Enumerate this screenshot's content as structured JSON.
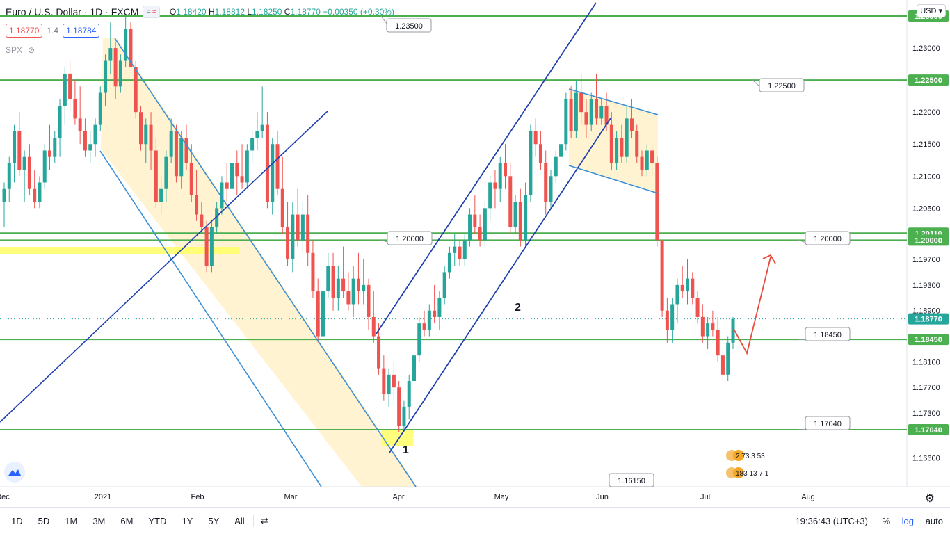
{
  "header": {
    "symbol_title": "Euro / U.S. Dollar · 1D · FXCM",
    "ohlc": {
      "o_label": "O",
      "o": "1.18420",
      "h_label": "H",
      "h": "1.18812",
      "l_label": "L",
      "l": "1.18250",
      "c_label": "C",
      "c": "1.18770",
      "change": "+0.00350 (+0.30%)"
    },
    "sell_price": "1.18770",
    "spread": "1.4",
    "buy_price": "1.18784",
    "indicator": "SPX",
    "currency": "USD",
    "toggle_icon": "chart-style-toggle-icon"
  },
  "colors": {
    "up": "#26a69a",
    "down": "#ef5350",
    "level": "#4caf50",
    "channel": "#1e40af",
    "trend": "#3a8fd6",
    "band": "#fff2cc",
    "highlight": "#ffff66",
    "arrow": "#e74c3c",
    "sr_label_bg": "#4caf50"
  },
  "chart_data": {
    "type": "candlestick",
    "title": "Euro / U.S. Dollar · 1D · FXCM",
    "y_axis": {
      "min": 1.1615,
      "max": 1.2375,
      "ticks": [
        "1.23000",
        "1.22000",
        "1.21500",
        "1.21000",
        "1.20500",
        "1.19700",
        "1.19300",
        "1.18900",
        "1.18100",
        "1.17700",
        "1.17300",
        "1.16600"
      ]
    },
    "x_axis": {
      "ticks": [
        "Dec",
        "2021",
        "Feb",
        "Mar",
        "Apr",
        "May",
        "Jun",
        "Jul",
        "Aug"
      ]
    },
    "support_resistance": [
      {
        "value": 1.235,
        "label": "1.23500"
      },
      {
        "value": 1.225,
        "label": "1.22500"
      },
      {
        "value": 1.2011,
        "label": "1.20110"
      },
      {
        "value": 1.2,
        "label": "1.20000"
      },
      {
        "value": 1.1845,
        "label": "1.18450"
      },
      {
        "value": 1.1704,
        "label": "1.17040"
      }
    ],
    "level_callouts": [
      "1.23500",
      "1.22500",
      "1.20000",
      "1.20000",
      "1.18450",
      "1.17040",
      "1.16150"
    ],
    "current_price": "1.18770",
    "annotations": [
      "1",
      "2"
    ],
    "candles": [
      [
        1.206,
        1.209,
        1.202,
        1.208
      ],
      [
        1.208,
        1.213,
        1.206,
        1.212
      ],
      [
        1.212,
        1.218,
        1.209,
        1.217
      ],
      [
        1.217,
        1.22,
        1.21,
        1.211
      ],
      [
        1.211,
        1.214,
        1.206,
        1.213
      ],
      [
        1.213,
        1.215,
        1.207,
        1.208
      ],
      [
        1.208,
        1.211,
        1.205,
        1.206
      ],
      [
        1.206,
        1.21,
        1.205,
        1.209
      ],
      [
        1.209,
        1.215,
        1.208,
        1.214
      ],
      [
        1.214,
        1.218,
        1.211,
        1.213
      ],
      [
        1.213,
        1.217,
        1.212,
        1.216
      ],
      [
        1.216,
        1.222,
        1.213,
        1.221
      ],
      [
        1.221,
        1.227,
        1.218,
        1.226
      ],
      [
        1.226,
        1.228,
        1.22,
        1.222
      ],
      [
        1.222,
        1.225,
        1.218,
        1.219
      ],
      [
        1.219,
        1.224,
        1.215,
        1.217
      ],
      [
        1.217,
        1.219,
        1.213,
        1.214
      ],
      [
        1.214,
        1.217,
        1.212,
        1.215
      ],
      [
        1.215,
        1.219,
        1.213,
        1.218
      ],
      [
        1.218,
        1.224,
        1.217,
        1.223
      ],
      [
        1.223,
        1.229,
        1.221,
        1.228
      ],
      [
        1.228,
        1.234,
        1.226,
        1.23
      ],
      [
        1.23,
        1.231,
        1.222,
        1.224
      ],
      [
        1.224,
        1.229,
        1.223,
        1.228
      ],
      [
        1.228,
        1.235,
        1.227,
        1.233
      ],
      [
        1.233,
        1.234,
        1.227,
        1.227
      ],
      [
        1.227,
        1.228,
        1.219,
        1.22
      ],
      [
        1.22,
        1.221,
        1.214,
        1.215
      ],
      [
        1.215,
        1.219,
        1.212,
        1.218
      ],
      [
        1.218,
        1.22,
        1.211,
        1.214
      ],
      [
        1.214,
        1.216,
        1.205,
        1.206
      ],
      [
        1.206,
        1.21,
        1.204,
        1.208
      ],
      [
        1.208,
        1.214,
        1.206,
        1.213
      ],
      [
        1.213,
        1.219,
        1.212,
        1.217
      ],
      [
        1.217,
        1.218,
        1.209,
        1.21
      ],
      [
        1.21,
        1.217,
        1.208,
        1.216
      ],
      [
        1.216,
        1.218,
        1.211,
        1.212
      ],
      [
        1.212,
        1.215,
        1.206,
        1.207
      ],
      [
        1.207,
        1.211,
        1.203,
        1.204
      ],
      [
        1.204,
        1.206,
        1.201,
        1.202
      ],
      [
        1.202,
        1.203,
        1.195,
        1.196
      ],
      [
        1.196,
        1.203,
        1.195,
        1.202
      ],
      [
        1.202,
        1.206,
        1.201,
        1.205
      ],
      [
        1.205,
        1.21,
        1.204,
        1.209
      ],
      [
        1.209,
        1.212,
        1.206,
        1.208
      ],
      [
        1.208,
        1.214,
        1.207,
        1.212
      ],
      [
        1.212,
        1.214,
        1.207,
        1.21
      ],
      [
        1.21,
        1.215,
        1.208,
        1.209
      ],
      [
        1.209,
        1.215,
        1.208,
        1.214
      ],
      [
        1.214,
        1.217,
        1.212,
        1.216
      ],
      [
        1.216,
        1.22,
        1.214,
        1.217
      ],
      [
        1.217,
        1.224,
        1.216,
        1.218
      ],
      [
        1.218,
        1.22,
        1.205,
        1.206
      ],
      [
        1.206,
        1.216,
        1.204,
        1.215
      ],
      [
        1.215,
        1.217,
        1.207,
        1.208
      ],
      [
        1.208,
        1.213,
        1.201,
        1.202
      ],
      [
        1.202,
        1.206,
        1.196,
        1.197
      ],
      [
        1.197,
        1.206,
        1.195,
        1.204
      ],
      [
        1.204,
        1.208,
        1.199,
        1.2
      ],
      [
        1.2,
        1.206,
        1.198,
        1.204
      ],
      [
        1.204,
        1.207,
        1.196,
        1.198
      ],
      [
        1.198,
        1.2,
        1.191,
        1.192
      ],
      [
        1.192,
        1.194,
        1.184,
        1.185
      ],
      [
        1.185,
        1.194,
        1.184,
        1.192
      ],
      [
        1.192,
        1.198,
        1.191,
        1.196
      ],
      [
        1.196,
        1.198,
        1.189,
        1.191
      ],
      [
        1.191,
        1.196,
        1.189,
        1.194
      ],
      [
        1.194,
        1.199,
        1.191,
        1.192
      ],
      [
        1.192,
        1.195,
        1.189,
        1.19
      ],
      [
        1.19,
        1.196,
        1.188,
        1.194
      ],
      [
        1.194,
        1.198,
        1.19,
        1.192
      ],
      [
        1.192,
        1.197,
        1.19,
        1.193
      ],
      [
        1.193,
        1.194,
        1.186,
        1.188
      ],
      [
        1.188,
        1.192,
        1.184,
        1.185
      ],
      [
        1.185,
        1.187,
        1.179,
        1.18
      ],
      [
        1.18,
        1.182,
        1.175,
        1.176
      ],
      [
        1.176,
        1.18,
        1.174,
        1.179
      ],
      [
        1.179,
        1.181,
        1.175,
        1.177
      ],
      [
        1.177,
        1.178,
        1.17,
        1.171
      ],
      [
        1.171,
        1.175,
        1.17,
        1.174
      ],
      [
        1.174,
        1.179,
        1.172,
        1.178
      ],
      [
        1.178,
        1.183,
        1.176,
        1.182
      ],
      [
        1.182,
        1.188,
        1.181,
        1.187
      ],
      [
        1.187,
        1.189,
        1.185,
        1.186
      ],
      [
        1.186,
        1.19,
        1.185,
        1.189
      ],
      [
        1.189,
        1.193,
        1.187,
        1.188
      ],
      [
        1.188,
        1.192,
        1.186,
        1.191
      ],
      [
        1.191,
        1.196,
        1.19,
        1.195
      ],
      [
        1.195,
        1.199,
        1.194,
        1.198
      ],
      [
        1.198,
        1.201,
        1.196,
        1.199
      ],
      [
        1.199,
        1.2,
        1.196,
        1.197
      ],
      [
        1.197,
        1.201,
        1.196,
        1.2
      ],
      [
        1.2,
        1.205,
        1.199,
        1.204
      ],
      [
        1.204,
        1.207,
        1.201,
        1.202
      ],
      [
        1.202,
        1.204,
        1.199,
        1.2
      ],
      [
        1.2,
        1.206,
        1.199,
        1.205
      ],
      [
        1.205,
        1.21,
        1.203,
        1.209
      ],
      [
        1.209,
        1.211,
        1.205,
        1.208
      ],
      [
        1.208,
        1.213,
        1.206,
        1.212
      ],
      [
        1.212,
        1.215,
        1.208,
        1.21
      ],
      [
        1.21,
        1.212,
        1.201,
        1.202
      ],
      [
        1.202,
        1.207,
        1.201,
        1.206
      ],
      [
        1.206,
        1.208,
        1.199,
        1.2
      ],
      [
        1.2,
        1.209,
        1.199,
        1.207
      ],
      [
        1.207,
        1.218,
        1.206,
        1.217
      ],
      [
        1.217,
        1.219,
        1.213,
        1.215
      ],
      [
        1.215,
        1.217,
        1.211,
        1.212
      ],
      [
        1.212,
        1.214,
        1.204,
        1.206
      ],
      [
        1.206,
        1.211,
        1.205,
        1.21
      ],
      [
        1.21,
        1.214,
        1.209,
        1.213
      ],
      [
        1.213,
        1.216,
        1.212,
        1.215
      ],
      [
        1.215,
        1.223,
        1.214,
        1.222
      ],
      [
        1.222,
        1.224,
        1.216,
        1.217
      ],
      [
        1.217,
        1.225,
        1.216,
        1.223
      ],
      [
        1.223,
        1.226,
        1.218,
        1.22
      ],
      [
        1.22,
        1.222,
        1.216,
        1.218
      ],
      [
        1.218,
        1.223,
        1.217,
        1.222
      ],
      [
        1.222,
        1.226,
        1.218,
        1.219
      ],
      [
        1.219,
        1.222,
        1.218,
        1.221
      ],
      [
        1.221,
        1.223,
        1.217,
        1.218
      ],
      [
        1.218,
        1.22,
        1.211,
        1.212
      ],
      [
        1.212,
        1.217,
        1.211,
        1.216
      ],
      [
        1.216,
        1.218,
        1.212,
        1.213
      ],
      [
        1.213,
        1.221,
        1.212,
        1.219
      ],
      [
        1.219,
        1.222,
        1.216,
        1.217
      ],
      [
        1.217,
        1.218,
        1.212,
        1.213
      ],
      [
        1.213,
        1.214,
        1.21,
        1.211
      ],
      [
        1.211,
        1.215,
        1.21,
        1.214
      ],
      [
        1.214,
        1.215,
        1.21,
        1.212
      ],
      [
        1.212,
        1.213,
        1.199,
        1.2
      ],
      [
        1.2,
        1.2,
        1.188,
        1.189
      ],
      [
        1.189,
        1.191,
        1.184,
        1.186
      ],
      [
        1.186,
        1.191,
        1.184,
        1.19
      ],
      [
        1.19,
        1.194,
        1.187,
        1.193
      ],
      [
        1.193,
        1.196,
        1.191,
        1.192
      ],
      [
        1.192,
        1.197,
        1.19,
        1.194
      ],
      [
        1.194,
        1.195,
        1.19,
        1.191
      ],
      [
        1.191,
        1.192,
        1.187,
        1.188
      ],
      [
        1.188,
        1.19,
        1.184,
        1.185
      ],
      [
        1.185,
        1.188,
        1.183,
        1.187
      ],
      [
        1.187,
        1.189,
        1.185,
        1.186
      ],
      [
        1.186,
        1.188,
        1.181,
        1.182
      ],
      [
        1.182,
        1.183,
        1.178,
        1.179
      ],
      [
        1.179,
        1.185,
        1.178,
        1.184
      ],
      [
        1.184,
        1.188,
        1.183,
        1.1877
      ]
    ]
  },
  "bottom_bar": {
    "ranges": [
      "1D",
      "5D",
      "1M",
      "3M",
      "6M",
      "YTD",
      "1Y",
      "5Y",
      "All"
    ],
    "time": "19:36:43 (UTC+3)",
    "percent": "%",
    "log": "log",
    "auto": "auto"
  },
  "news_icons": [
    "2 73 3 53",
    "183 13 7 1"
  ]
}
